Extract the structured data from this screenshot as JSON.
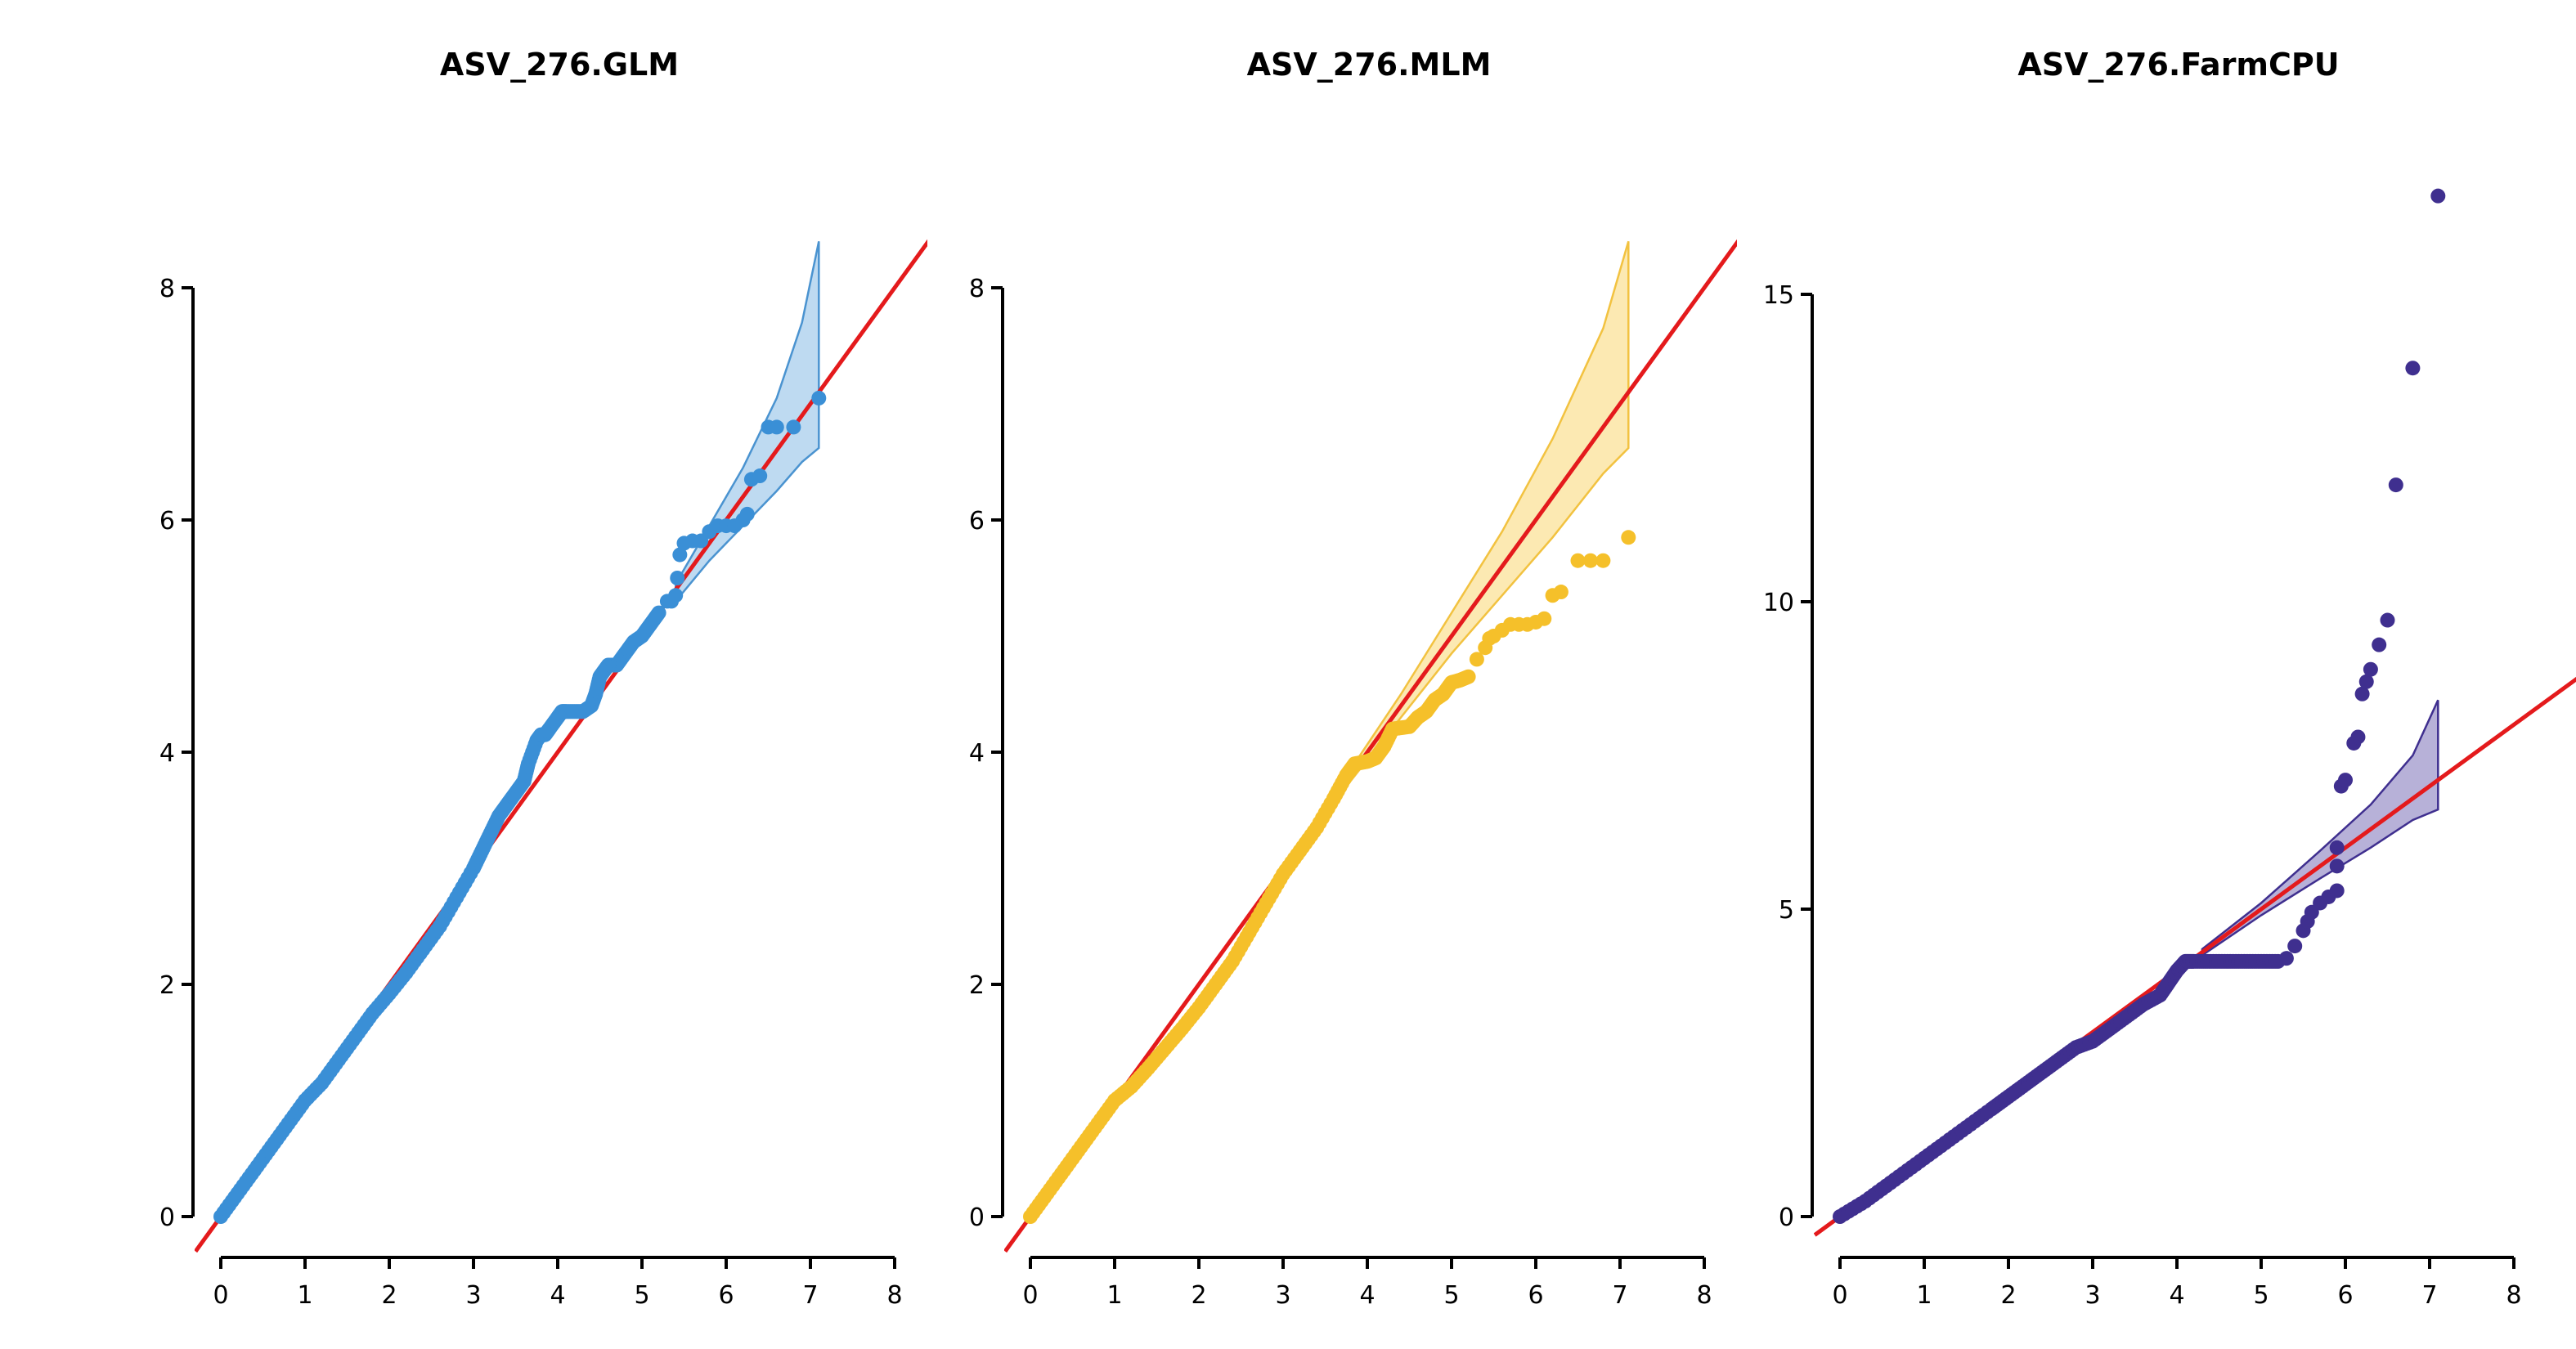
{
  "chart_data": [
    {
      "type": "scatter",
      "title": "ASV_276.GLM",
      "xlabel": "",
      "ylabel": "",
      "xlim": [
        0,
        8
      ],
      "ylim": [
        0,
        8
      ],
      "x_ticks": [
        0,
        1,
        2,
        3,
        4,
        5,
        6,
        7,
        8
      ],
      "y_ticks": [
        0,
        2,
        4,
        6,
        8
      ],
      "grid": false,
      "colors": {
        "points": "#3a8fd6",
        "band_fill": "#b3d3ef",
        "band_stroke": "#4a93d0",
        "reference": "#e41a1c"
      },
      "reference_line": "y = x",
      "confidence_band": {
        "x": [
          5.4,
          5.8,
          6.2,
          6.6,
          6.9,
          7.1
        ],
        "lower": [
          5.3,
          5.65,
          5.95,
          6.25,
          6.5,
          6.62
        ],
        "upper": [
          5.45,
          5.95,
          6.45,
          7.05,
          7.7,
          8.4
        ]
      },
      "series": [
        {
          "x": [
            0.0,
            0.2,
            0.4,
            0.6,
            0.8,
            1.0,
            1.2,
            1.4,
            1.6,
            1.8,
            2.0,
            2.2,
            2.4,
            2.6,
            2.8,
            3.0,
            3.1,
            3.2,
            3.3,
            3.4,
            3.5,
            3.6,
            3.65,
            3.75,
            3.8,
            3.85,
            3.9,
            4.0,
            4.05,
            4.1,
            4.2,
            4.3,
            4.4,
            4.45,
            4.5,
            4.55,
            4.6,
            4.7,
            4.8,
            4.9,
            5.0,
            5.1,
            5.2,
            5.3,
            5.35,
            5.4,
            5.42,
            5.45,
            5.5,
            5.6,
            5.7,
            5.8,
            5.9,
            6.0,
            6.1,
            6.2,
            6.25,
            6.3,
            6.4,
            6.5,
            6.6,
            6.8,
            7.1
          ],
          "y": [
            0.0,
            0.2,
            0.4,
            0.6,
            0.8,
            1.0,
            1.15,
            1.35,
            1.55,
            1.75,
            1.92,
            2.1,
            2.3,
            2.5,
            2.75,
            3.0,
            3.15,
            3.3,
            3.45,
            3.55,
            3.65,
            3.75,
            3.9,
            4.1,
            4.15,
            4.15,
            4.2,
            4.3,
            4.35,
            4.35,
            4.35,
            4.35,
            4.4,
            4.5,
            4.65,
            4.7,
            4.75,
            4.75,
            4.85,
            4.95,
            5.0,
            5.1,
            5.2,
            5.3,
            5.3,
            5.35,
            5.5,
            5.7,
            5.8,
            5.82,
            5.82,
            5.9,
            5.95,
            5.95,
            5.95,
            6.0,
            6.05,
            6.35,
            6.38,
            6.8,
            6.8,
            6.8,
            7.05
          ]
        }
      ]
    },
    {
      "type": "scatter",
      "title": "ASV_276.MLM",
      "xlabel": "",
      "ylabel": "",
      "xlim": [
        0,
        8
      ],
      "ylim": [
        0,
        8
      ],
      "x_ticks": [
        0,
        1,
        2,
        3,
        4,
        5,
        6,
        7,
        8
      ],
      "y_ticks": [
        0,
        2,
        4,
        6,
        8
      ],
      "grid": false,
      "colors": {
        "points": "#f5c02a",
        "band_fill": "#fbe5a4",
        "band_stroke": "#f2c240",
        "reference": "#e41a1c"
      },
      "reference_line": "y = x",
      "confidence_band": {
        "x": [
          3.8,
          4.4,
          5.0,
          5.6,
          6.2,
          6.8,
          7.1
        ],
        "lower": [
          3.75,
          4.3,
          4.85,
          5.35,
          5.85,
          6.4,
          6.62
        ],
        "upper": [
          3.85,
          4.5,
          5.2,
          5.9,
          6.7,
          7.65,
          8.4
        ]
      },
      "series": [
        {
          "x": [
            0.0,
            0.2,
            0.4,
            0.6,
            0.8,
            1.0,
            1.2,
            1.4,
            1.6,
            1.8,
            2.0,
            2.2,
            2.4,
            2.6,
            2.8,
            3.0,
            3.2,
            3.4,
            3.6,
            3.75,
            3.85,
            4.0,
            4.1,
            4.2,
            4.3,
            4.5,
            4.6,
            4.7,
            4.8,
            4.9,
            5.0,
            5.1,
            5.2,
            5.3,
            5.4,
            5.45,
            5.5,
            5.6,
            5.7,
            5.8,
            5.9,
            6.0,
            6.1,
            6.2,
            6.3,
            6.5,
            6.65,
            6.8,
            7.1
          ],
          "y": [
            0.0,
            0.2,
            0.4,
            0.6,
            0.8,
            1.0,
            1.12,
            1.28,
            1.45,
            1.62,
            1.8,
            2.0,
            2.2,
            2.45,
            2.7,
            2.95,
            3.15,
            3.35,
            3.6,
            3.8,
            3.9,
            3.92,
            3.95,
            4.05,
            4.2,
            4.22,
            4.3,
            4.35,
            4.45,
            4.5,
            4.6,
            4.62,
            4.65,
            4.8,
            4.9,
            4.98,
            5.0,
            5.05,
            5.1,
            5.1,
            5.1,
            5.12,
            5.15,
            5.35,
            5.38,
            5.65,
            5.65,
            5.65,
            5.85
          ]
        }
      ]
    },
    {
      "type": "scatter",
      "title": "ASV_276.FarmCPU",
      "xlabel": "",
      "ylabel": "",
      "xlim": [
        0,
        8
      ],
      "ylim": [
        0,
        15
      ],
      "x_ticks": [
        0,
        1,
        2,
        3,
        4,
        5,
        6,
        7,
        8
      ],
      "y_ticks": [
        0,
        5,
        10,
        15
      ],
      "grid": false,
      "colors": {
        "points": "#3f2f8f",
        "band_fill": "#aaa3d1",
        "band_stroke": "#3f2f8f",
        "reference": "#e41a1c"
      },
      "reference_line": "y = x",
      "confidence_band": {
        "x": [
          4.3,
          5.0,
          5.7,
          6.3,
          6.8,
          7.1
        ],
        "lower": [
          4.25,
          4.9,
          5.5,
          6.0,
          6.45,
          6.62
        ],
        "upper": [
          4.35,
          5.1,
          5.95,
          6.7,
          7.5,
          8.4
        ]
      },
      "series": [
        {
          "x": [
            0.0,
            0.3,
            0.6,
            0.9,
            1.2,
            1.5,
            1.8,
            2.0,
            2.2,
            2.4,
            2.6,
            2.8,
            3.0,
            3.2,
            3.4,
            3.6,
            3.8,
            3.9,
            4.0,
            4.1,
            4.2,
            4.4,
            4.6,
            4.8,
            5.0,
            5.2,
            5.3,
            5.4,
            5.5,
            5.55,
            5.6,
            5.7,
            5.8,
            5.9,
            5.9,
            5.9,
            5.95,
            6.0,
            6.1,
            6.15,
            6.2,
            6.25,
            6.3,
            6.4,
            6.5,
            6.6,
            6.8,
            7.1
          ],
          "y": [
            0.0,
            0.25,
            0.55,
            0.85,
            1.15,
            1.45,
            1.75,
            1.95,
            2.15,
            2.35,
            2.55,
            2.75,
            2.85,
            3.05,
            3.25,
            3.45,
            3.6,
            3.8,
            4.0,
            4.15,
            4.15,
            4.15,
            4.15,
            4.15,
            4.15,
            4.15,
            4.2,
            4.4,
            4.65,
            4.8,
            4.95,
            5.1,
            5.2,
            5.3,
            5.7,
            6.0,
            7.0,
            7.1,
            7.7,
            7.8,
            8.5,
            8.7,
            8.9,
            9.3,
            9.7,
            11.9,
            13.8,
            16.6
          ]
        }
      ]
    }
  ]
}
